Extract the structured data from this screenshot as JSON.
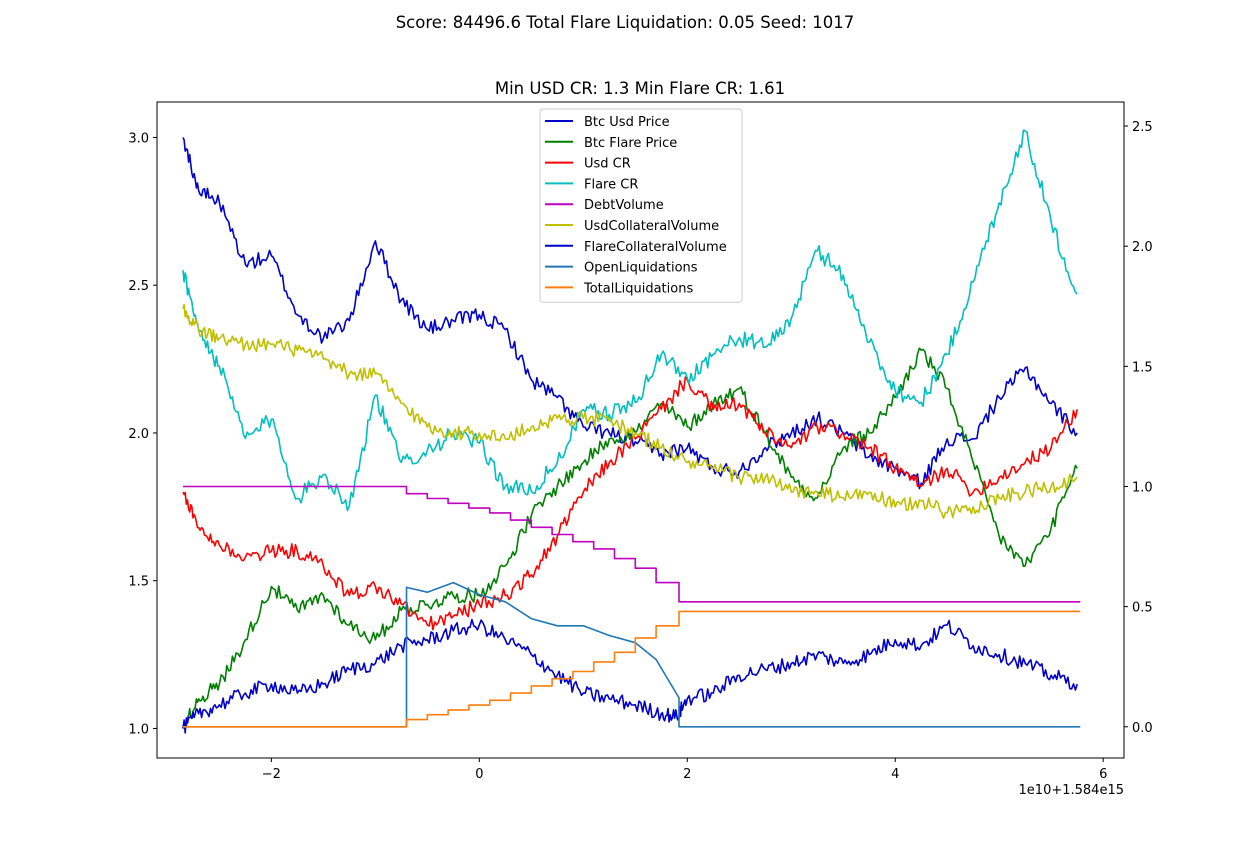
{
  "suptitle": "Score: 84496.6 Total Flare Liquidation: 0.05 Seed: 1017",
  "chart_data": {
    "type": "line",
    "title": "Min USD CR: 1.3 Min Flare CR: 1.61",
    "xlabel": "",
    "ylabel": "",
    "x_offset_label": "1e10+1.584e15",
    "xlim": [
      -3.1,
      6.2
    ],
    "ylim_left": [
      0.9,
      3.12
    ],
    "ylim_right": [
      -0.13,
      2.6
    ],
    "x_ticks": [
      -2,
      0,
      2,
      4,
      6
    ],
    "x_tick_labels": [
      "−2",
      "0",
      "2",
      "4",
      "6"
    ],
    "y_ticks_left": [
      1.0,
      1.5,
      2.0,
      2.5,
      3.0
    ],
    "y_tick_labels_left": [
      "1.0",
      "1.5",
      "2.0",
      "2.5",
      "3.0"
    ],
    "y_ticks_right": [
      0.0,
      0.5,
      1.0,
      1.5,
      2.0,
      2.5
    ],
    "y_tick_labels_right": [
      "0.0",
      "0.5",
      "1.0",
      "1.5",
      "2.0",
      "2.5"
    ],
    "grid": false,
    "legend_position": "upper-center",
    "series": [
      {
        "name": "Btc Usd Price",
        "color": "#0000cd",
        "axis": "left",
        "x": [
          -2.85,
          -2.7,
          -2.5,
          -2.25,
          -2.0,
          -1.75,
          -1.5,
          -1.25,
          -1.0,
          -0.75,
          -0.5,
          -0.25,
          0.0,
          0.25,
          0.5,
          0.75,
          1.0,
          1.25,
          1.5,
          1.75,
          2.0,
          2.25,
          2.5,
          2.75,
          3.0,
          3.25,
          3.5,
          3.75,
          4.0,
          4.25,
          4.5,
          4.75,
          5.0,
          5.25,
          5.5,
          5.75
        ],
        "y": [
          3.0,
          2.82,
          2.78,
          2.57,
          2.6,
          2.4,
          2.32,
          2.38,
          2.65,
          2.45,
          2.35,
          2.38,
          2.4,
          2.35,
          2.18,
          2.12,
          2.02,
          2.0,
          1.97,
          1.93,
          1.95,
          1.88,
          1.87,
          1.95,
          2.0,
          2.05,
          2.0,
          1.92,
          1.88,
          1.83,
          1.98,
          1.98,
          2.12,
          2.22,
          2.1,
          2.0
        ]
      },
      {
        "name": "Btc Flare Price",
        "color": "#008000",
        "axis": "left",
        "x": [
          -2.85,
          -2.7,
          -2.5,
          -2.25,
          -2.0,
          -1.75,
          -1.5,
          -1.25,
          -1.0,
          -0.75,
          -0.5,
          -0.25,
          0.0,
          0.25,
          0.5,
          0.75,
          1.0,
          1.25,
          1.5,
          1.75,
          2.0,
          2.25,
          2.5,
          2.75,
          3.0,
          3.25,
          3.5,
          3.75,
          4.0,
          4.25,
          4.5,
          4.75,
          5.0,
          5.25,
          5.5,
          5.75
        ],
        "y": [
          1.0,
          1.1,
          1.15,
          1.3,
          1.48,
          1.4,
          1.45,
          1.35,
          1.3,
          1.4,
          1.42,
          1.45,
          1.45,
          1.55,
          1.72,
          1.82,
          1.9,
          1.98,
          2.0,
          2.1,
          2.02,
          2.1,
          2.15,
          2.0,
          1.85,
          1.78,
          1.95,
          2.0,
          2.12,
          2.28,
          2.15,
          1.9,
          1.65,
          1.55,
          1.68,
          1.88
        ]
      },
      {
        "name": "Usd CR",
        "color": "#ff0000",
        "axis": "left",
        "x": [
          -2.85,
          -2.7,
          -2.5,
          -2.25,
          -2.0,
          -1.75,
          -1.5,
          -1.25,
          -1.0,
          -0.75,
          -0.5,
          -0.25,
          0.0,
          0.25,
          0.5,
          0.75,
          1.0,
          1.25,
          1.5,
          1.75,
          2.0,
          2.25,
          2.5,
          2.75,
          3.0,
          3.25,
          3.5,
          3.75,
          4.0,
          4.25,
          4.5,
          4.75,
          5.0,
          5.25,
          5.5,
          5.75
        ],
        "y": [
          1.8,
          1.68,
          1.62,
          1.58,
          1.6,
          1.6,
          1.55,
          1.45,
          1.48,
          1.42,
          1.35,
          1.38,
          1.42,
          1.45,
          1.52,
          1.65,
          1.8,
          1.9,
          1.98,
          2.08,
          2.18,
          2.08,
          2.1,
          2.0,
          1.95,
          2.02,
          2.0,
          1.95,
          1.88,
          1.82,
          1.88,
          1.8,
          1.85,
          1.9,
          1.95,
          2.08
        ]
      },
      {
        "name": "Flare CR",
        "color": "#00bfbf",
        "axis": "right",
        "x": [
          -2.85,
          -2.7,
          -2.5,
          -2.25,
          -2.0,
          -1.75,
          -1.5,
          -1.25,
          -1.0,
          -0.75,
          -0.5,
          -0.25,
          0.0,
          0.25,
          0.5,
          0.75,
          1.0,
          1.25,
          1.5,
          1.75,
          2.0,
          2.25,
          2.5,
          2.75,
          3.0,
          3.25,
          3.5,
          3.75,
          4.0,
          4.25,
          4.5,
          4.75,
          5.0,
          5.25,
          5.5,
          5.75
        ],
        "y": [
          1.9,
          1.65,
          1.5,
          1.2,
          1.28,
          0.95,
          1.05,
          0.92,
          1.38,
          1.1,
          1.15,
          1.22,
          1.18,
          1.0,
          0.98,
          1.1,
          1.32,
          1.3,
          1.35,
          1.55,
          1.45,
          1.55,
          1.62,
          1.58,
          1.7,
          1.98,
          1.88,
          1.6,
          1.4,
          1.35,
          1.55,
          1.85,
          2.18,
          2.48,
          2.1,
          1.8
        ]
      },
      {
        "name": "DebtVolume",
        "color": "#bf00bf",
        "axis": "right",
        "step": true,
        "x": [
          -2.85,
          -0.7,
          -0.5,
          -0.3,
          -0.1,
          0.1,
          0.3,
          0.5,
          0.7,
          0.9,
          1.1,
          1.3,
          1.5,
          1.7,
          1.92,
          5.78
        ],
        "y": [
          1.0,
          0.97,
          0.95,
          0.93,
          0.91,
          0.89,
          0.86,
          0.83,
          0.8,
          0.77,
          0.74,
          0.7,
          0.66,
          0.6,
          0.52,
          0.52
        ]
      },
      {
        "name": "UsdCollateralVolume",
        "color": "#bfbf00",
        "axis": "left",
        "x": [
          -2.85,
          -2.7,
          -2.5,
          -2.25,
          -2.0,
          -1.75,
          -1.5,
          -1.25,
          -1.0,
          -0.75,
          -0.5,
          -0.25,
          0.0,
          0.25,
          0.5,
          0.75,
          1.0,
          1.25,
          1.5,
          1.75,
          2.0,
          2.25,
          2.5,
          2.75,
          3.0,
          3.25,
          3.5,
          3.75,
          4.0,
          4.25,
          4.5,
          4.75,
          5.0,
          5.25,
          5.5,
          5.75
        ],
        "y": [
          2.42,
          2.35,
          2.32,
          2.3,
          2.3,
          2.28,
          2.25,
          2.2,
          2.2,
          2.1,
          2.02,
          2.0,
          2.0,
          1.98,
          2.02,
          2.05,
          2.05,
          2.04,
          2.0,
          1.95,
          1.9,
          1.88,
          1.85,
          1.85,
          1.8,
          1.8,
          1.78,
          1.8,
          1.75,
          1.77,
          1.73,
          1.75,
          1.78,
          1.8,
          1.82,
          1.85
        ]
      },
      {
        "name": "FlareCollateralVolume",
        "color": "#0000cd",
        "axis": "left",
        "x": [
          -2.85,
          -2.7,
          -2.5,
          -2.25,
          -2.0,
          -1.75,
          -1.5,
          -1.25,
          -1.0,
          -0.75,
          -0.5,
          -0.25,
          0.0,
          0.25,
          0.5,
          0.75,
          1.0,
          1.25,
          1.5,
          1.75,
          1.9,
          2.0,
          2.25,
          2.5,
          2.75,
          3.0,
          3.25,
          3.5,
          3.75,
          4.0,
          4.25,
          4.5,
          4.75,
          5.0,
          5.25,
          5.5,
          5.75
        ],
        "y": [
          1.0,
          1.05,
          1.08,
          1.12,
          1.15,
          1.12,
          1.15,
          1.2,
          1.22,
          1.28,
          1.3,
          1.33,
          1.35,
          1.3,
          1.25,
          1.18,
          1.12,
          1.1,
          1.08,
          1.05,
          1.04,
          1.1,
          1.12,
          1.18,
          1.2,
          1.22,
          1.25,
          1.22,
          1.25,
          1.3,
          1.28,
          1.35,
          1.28,
          1.25,
          1.22,
          1.18,
          1.15
        ]
      },
      {
        "name": "OpenLiquidations",
        "color": "#1f77b4",
        "axis": "right",
        "x": [
          -2.85,
          -0.7,
          -0.7,
          -0.5,
          -0.25,
          0.0,
          0.25,
          0.5,
          0.75,
          1.0,
          1.25,
          1.5,
          1.7,
          1.92,
          1.92,
          5.78
        ],
        "y": [
          0.0,
          0.0,
          0.58,
          0.56,
          0.6,
          0.55,
          0.52,
          0.45,
          0.42,
          0.42,
          0.38,
          0.35,
          0.28,
          0.12,
          0.0,
          0.0
        ]
      },
      {
        "name": "TotalLiquidations",
        "color": "#ff7f0e",
        "axis": "right",
        "step": true,
        "x": [
          -2.85,
          -0.7,
          -0.5,
          -0.3,
          -0.1,
          0.1,
          0.3,
          0.5,
          0.7,
          0.9,
          1.1,
          1.3,
          1.5,
          1.7,
          1.92,
          5.78
        ],
        "y": [
          0.0,
          0.03,
          0.05,
          0.07,
          0.09,
          0.11,
          0.14,
          0.17,
          0.2,
          0.23,
          0.27,
          0.31,
          0.37,
          0.42,
          0.48,
          0.48
        ]
      }
    ]
  }
}
